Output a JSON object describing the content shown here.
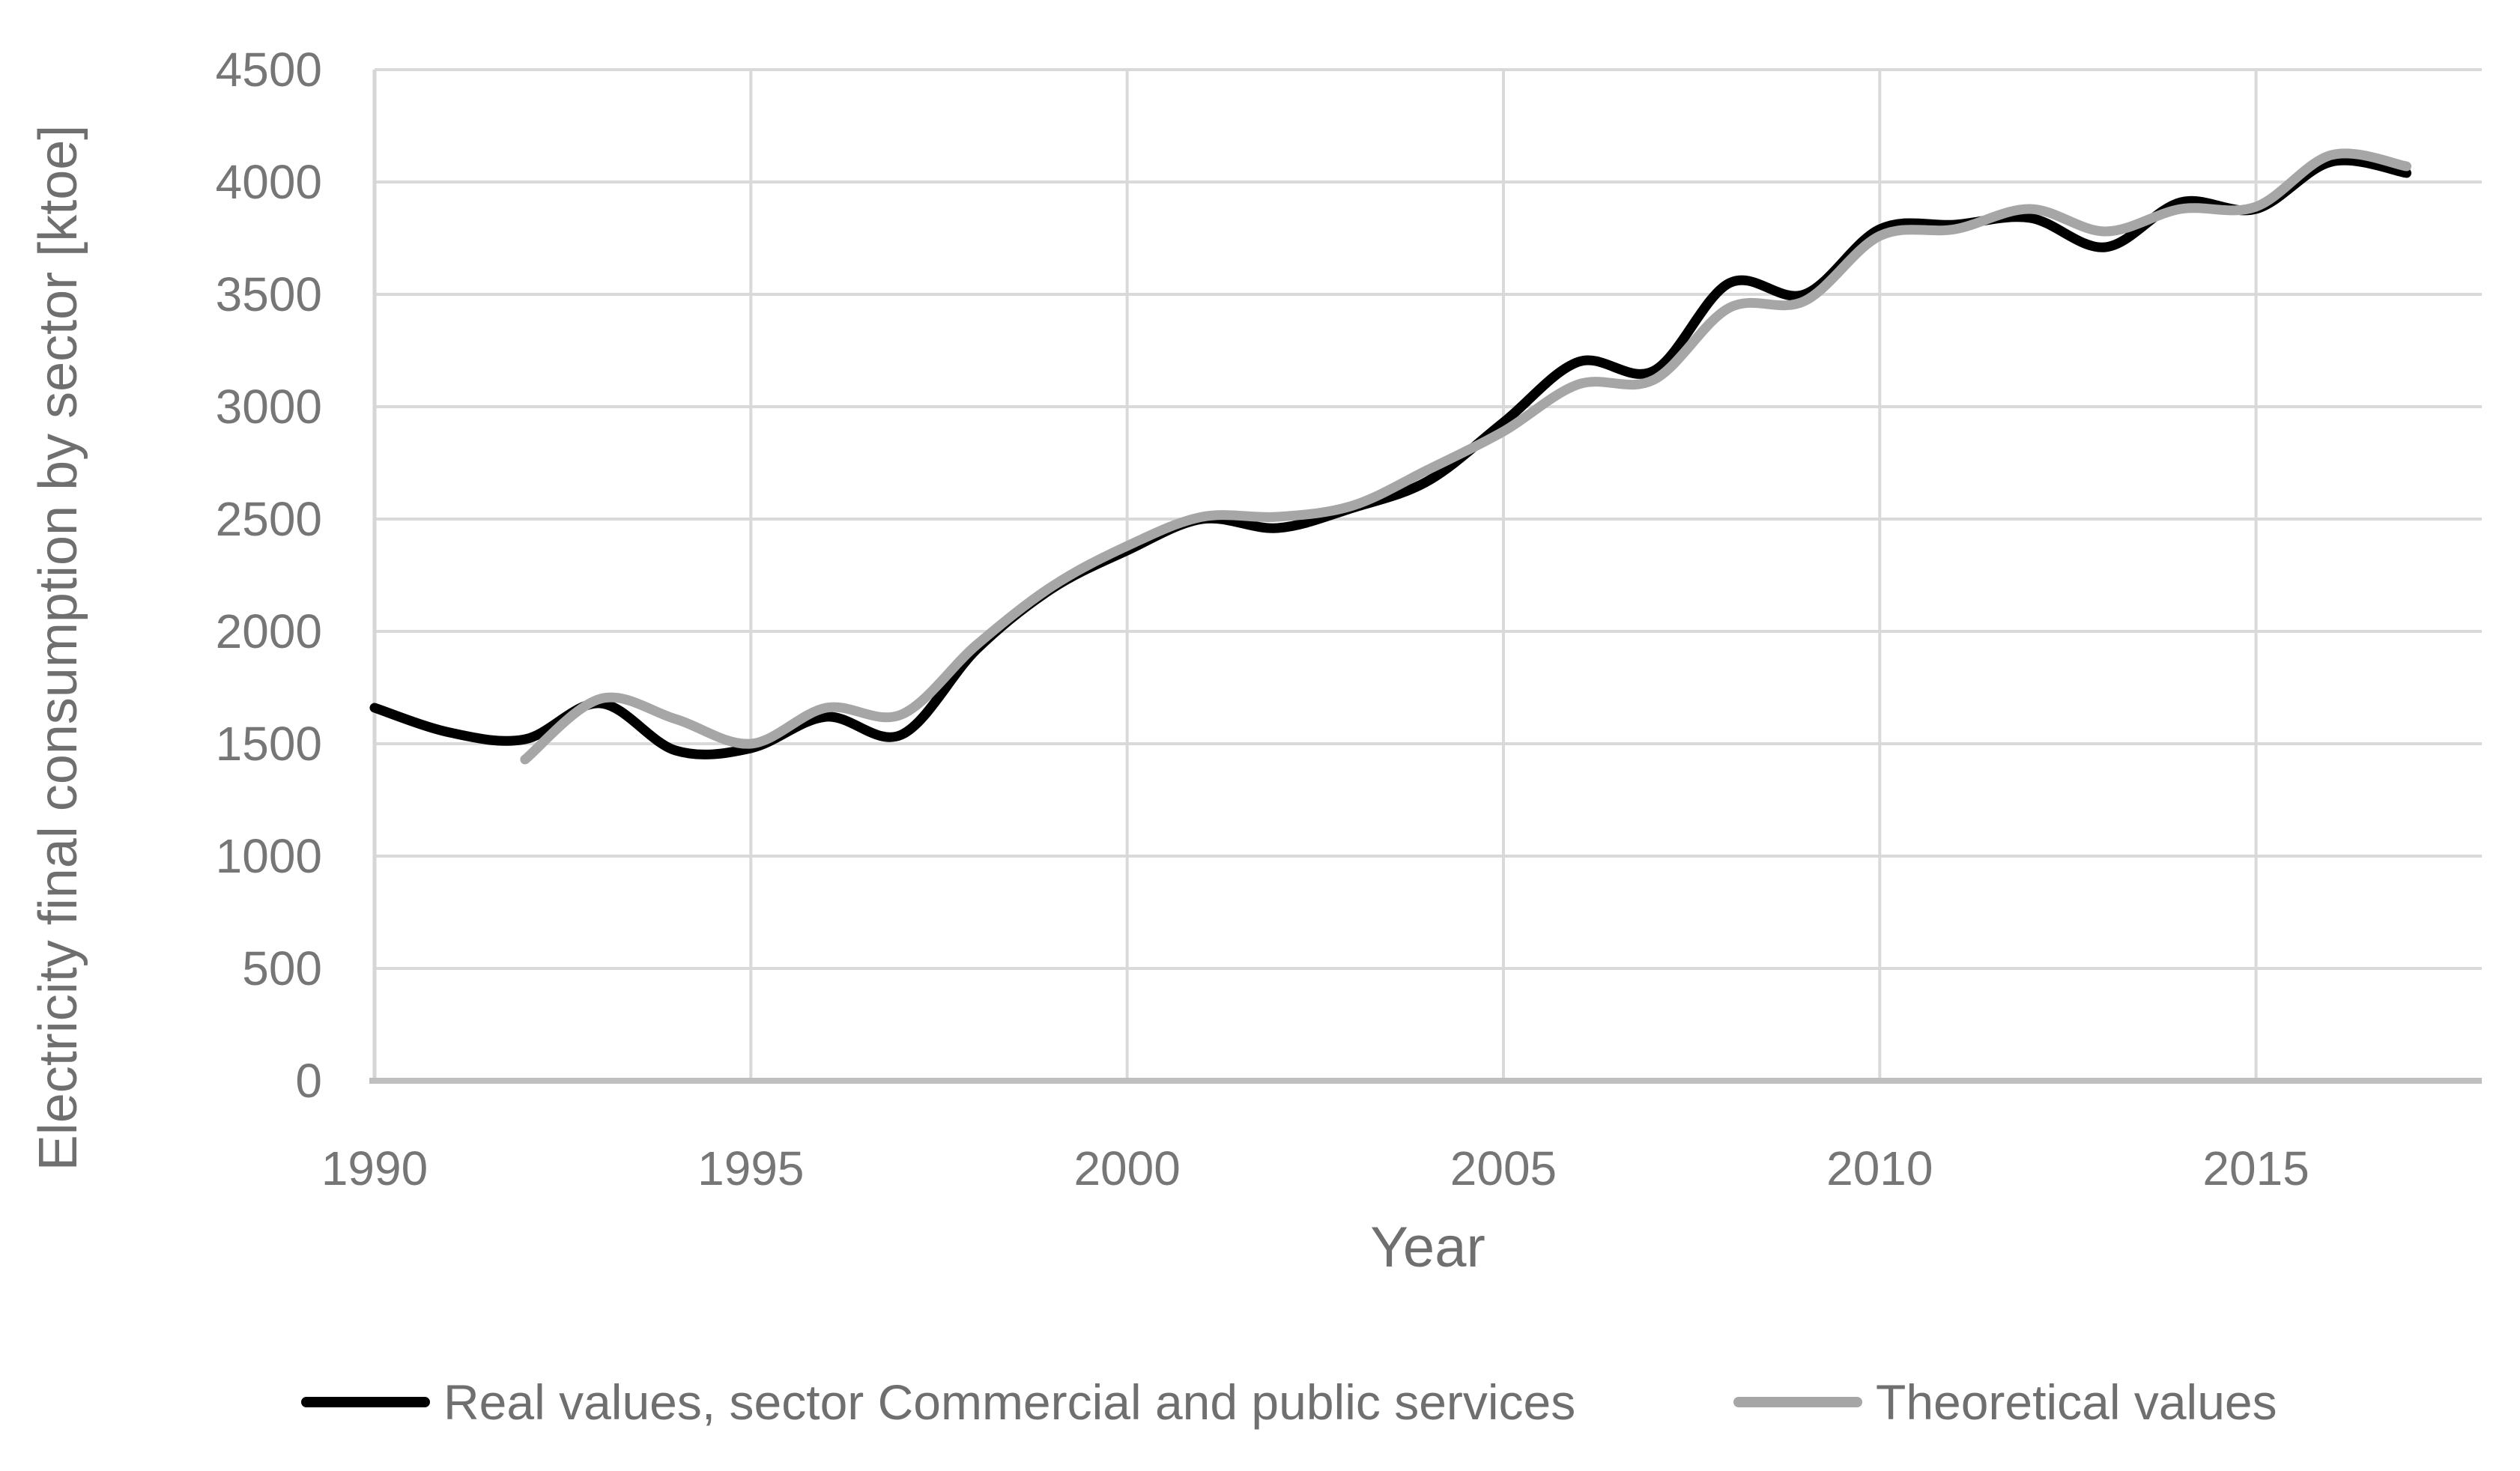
{
  "chart_data": {
    "type": "line",
    "title": "",
    "xlabel": "Year",
    "ylabel": "Electricity final consumption by sector [ktoe]",
    "xlim": [
      1990,
      2018
    ],
    "ylim": [
      0,
      4500
    ],
    "x_ticks": [
      1990,
      1995,
      2000,
      2005,
      2010,
      2015
    ],
    "y_ticks": [
      0,
      500,
      1000,
      1500,
      2000,
      2500,
      3000,
      3500,
      4000,
      4500
    ],
    "grid": true,
    "legend_position": "bottom",
    "smooth_lines": true,
    "x": [
      1990,
      1991,
      1992,
      1993,
      1994,
      1995,
      1996,
      1997,
      1998,
      1999,
      2000,
      2001,
      2002,
      2003,
      2004,
      2005,
      2006,
      2007,
      2008,
      2009,
      2010,
      2011,
      2012,
      2013,
      2014,
      2015,
      2016,
      2017
    ],
    "series": [
      {
        "name": "Real values, sector Commercial and public services",
        "color": "#000000",
        "values": [
          1660,
          1550,
          1520,
          1680,
          1470,
          1480,
          1620,
          1540,
          1920,
          2190,
          2360,
          2500,
          2460,
          2550,
          2670,
          2930,
          3200,
          3160,
          3550,
          3500,
          3790,
          3810,
          3840,
          3710,
          3910,
          3880,
          4090,
          4040
        ]
      },
      {
        "name": "Theoretical values",
        "color": "#a6a6a6",
        "values": [
          null,
          null,
          1430,
          1700,
          1610,
          1500,
          1660,
          1630,
          1940,
          2200,
          2380,
          2510,
          2510,
          2560,
          2720,
          2890,
          3100,
          3120,
          3440,
          3470,
          3760,
          3790,
          3880,
          3780,
          3880,
          3890,
          4120,
          4070
        ]
      }
    ]
  },
  "colors": {
    "background": "#ffffff",
    "gridline": "#d9d9d9",
    "left_axis_line": "#d6d6d6",
    "bottom_axis_line": "#bfbfbf",
    "tick_text": "#767676",
    "title_text": "#6f6f6f",
    "legend_text": "#6f6f6f"
  }
}
